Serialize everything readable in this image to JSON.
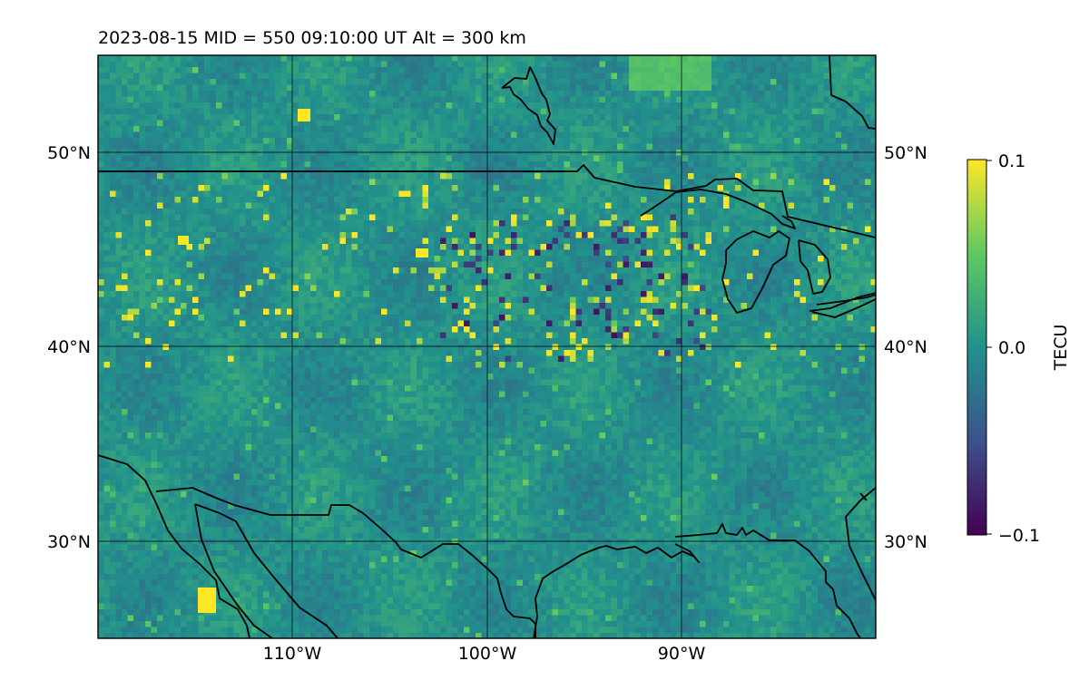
{
  "figure": {
    "title": "2023-08-15  MID = 550    09:10:00  UT  Alt = 300 km"
  },
  "map": {
    "lat_ticks": [
      "50°N",
      "40°N",
      "30°N"
    ],
    "lon_ticks": [
      "110°W",
      "100°W",
      "90°W"
    ],
    "lon_range": [
      -120,
      -80
    ],
    "lat_range": [
      25,
      55
    ],
    "gridlines": true,
    "coastline_color": "#000000"
  },
  "colorbar": {
    "label": "TECU",
    "ticks": [
      "0.1",
      "0.0",
      "−0.1"
    ],
    "vmin": -0.1,
    "vmax": 0.1,
    "colormap": "viridis",
    "colors": [
      "#440154",
      "#3b528b",
      "#21918c",
      "#5ec962",
      "#fde725"
    ]
  }
}
